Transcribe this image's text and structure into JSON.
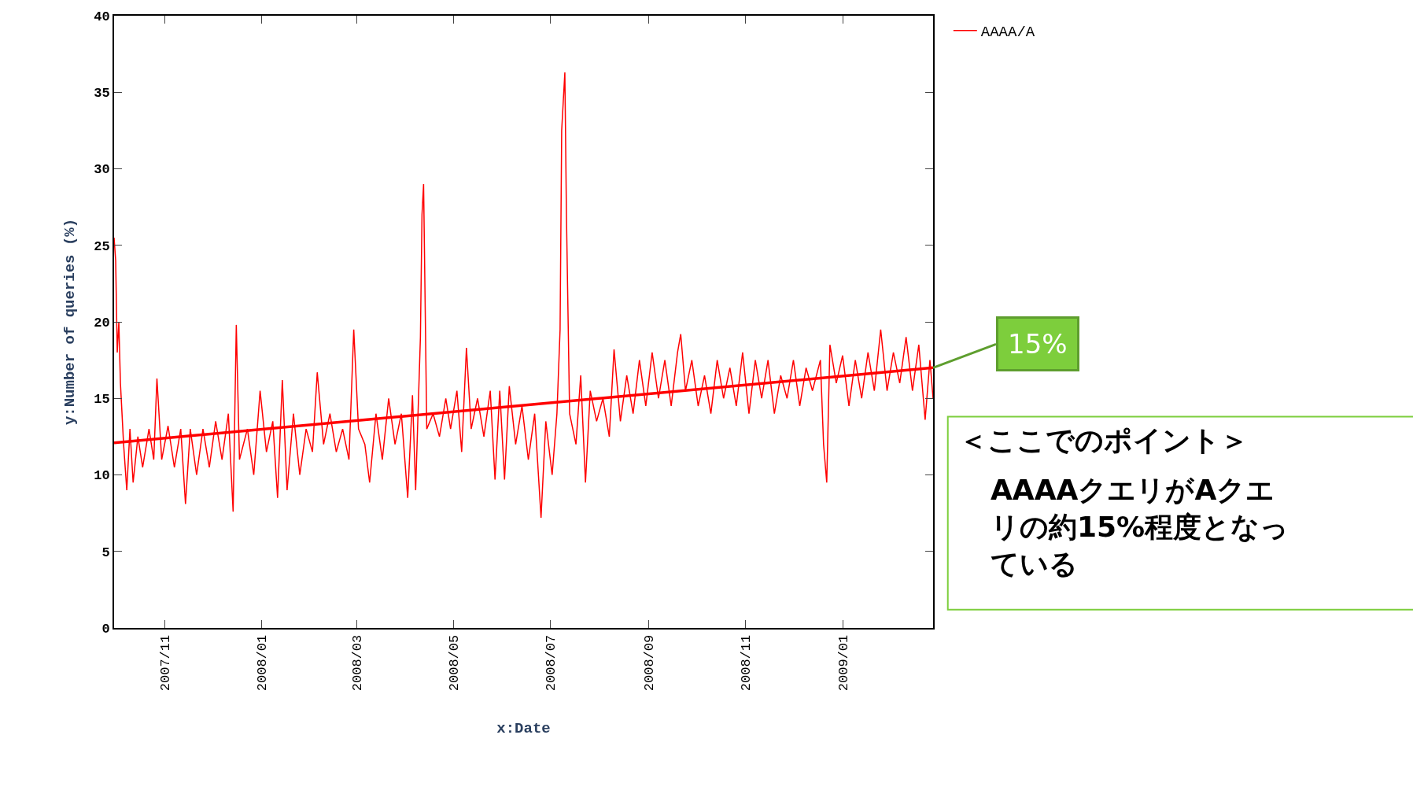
{
  "chart_data": {
    "type": "line",
    "xlabel": "x:Date",
    "ylabel": "y:Number of queries (%)",
    "xlim": [
      "2007-09-30",
      "2009-02-27"
    ],
    "ylim": [
      0,
      40
    ],
    "xticks": [
      {
        "value": "2007-11-01",
        "label": "2007/11"
      },
      {
        "value": "2008-01-01",
        "label": "2008/01"
      },
      {
        "value": "2008-03-01",
        "label": "2008/03"
      },
      {
        "value": "2008-05-01",
        "label": "2008/05"
      },
      {
        "value": "2008-07-01",
        "label": "2008/07"
      },
      {
        "value": "2008-09-01",
        "label": "2008/09"
      },
      {
        "value": "2008-11-01",
        "label": "2008/11"
      },
      {
        "value": "2009-01-01",
        "label": "2009/01"
      }
    ],
    "yticks": [
      0,
      5,
      10,
      15,
      20,
      25,
      30,
      35,
      40
    ],
    "legend": "top right",
    "series": [
      {
        "name": "AAAA/A",
        "color": "#ff0000",
        "x": [
          "2007-09-30",
          "2007-10-01",
          "2007-10-02",
          "2007-10-03",
          "2007-10-04",
          "2007-10-06",
          "2007-10-08",
          "2007-10-10",
          "2007-10-12",
          "2007-10-15",
          "2007-10-18",
          "2007-10-22",
          "2007-10-25",
          "2007-10-27",
          "2007-10-30",
          "2007-11-03",
          "2007-11-07",
          "2007-11-11",
          "2007-11-14",
          "2007-11-17",
          "2007-11-21",
          "2007-11-25",
          "2007-11-29",
          "2007-12-03",
          "2007-12-07",
          "2007-12-11",
          "2007-12-14",
          "2007-12-16",
          "2007-12-18",
          "2007-12-23",
          "2007-12-27",
          "2007-12-31",
          "2008-01-04",
          "2008-01-08",
          "2008-01-11",
          "2008-01-14",
          "2008-01-17",
          "2008-01-21",
          "2008-01-25",
          "2008-01-29",
          "2008-02-02",
          "2008-02-05",
          "2008-02-09",
          "2008-02-13",
          "2008-02-17",
          "2008-02-21",
          "2008-02-25",
          "2008-02-28",
          "2008-03-02",
          "2008-03-06",
          "2008-03-09",
          "2008-03-13",
          "2008-03-17",
          "2008-03-21",
          "2008-03-25",
          "2008-03-29",
          "2008-04-02",
          "2008-04-05",
          "2008-04-07",
          "2008-04-10",
          "2008-04-11",
          "2008-04-12",
          "2008-04-14",
          "2008-04-18",
          "2008-04-22",
          "2008-04-26",
          "2008-04-29",
          "2008-05-03",
          "2008-05-06",
          "2008-05-09",
          "2008-05-12",
          "2008-05-16",
          "2008-05-20",
          "2008-05-24",
          "2008-05-27",
          "2008-05-30",
          "2008-06-02",
          "2008-06-05",
          "2008-06-09",
          "2008-06-13",
          "2008-06-17",
          "2008-06-21",
          "2008-06-25",
          "2008-06-28",
          "2008-07-02",
          "2008-07-05",
          "2008-07-07",
          "2008-07-08",
          "2008-07-10",
          "2008-07-11",
          "2008-07-13",
          "2008-07-17",
          "2008-07-20",
          "2008-07-23",
          "2008-07-26",
          "2008-07-30",
          "2008-08-03",
          "2008-08-07",
          "2008-08-10",
          "2008-08-14",
          "2008-08-18",
          "2008-08-22",
          "2008-08-26",
          "2008-08-30",
          "2008-09-03",
          "2008-09-07",
          "2008-09-11",
          "2008-09-15",
          "2008-09-19",
          "2008-09-21",
          "2008-09-24",
          "2008-09-28",
          "2008-10-02",
          "2008-10-06",
          "2008-10-10",
          "2008-10-14",
          "2008-10-18",
          "2008-10-22",
          "2008-10-26",
          "2008-10-30",
          "2008-11-03",
          "2008-11-07",
          "2008-11-11",
          "2008-11-15",
          "2008-11-19",
          "2008-11-23",
          "2008-11-27",
          "2008-12-01",
          "2008-12-05",
          "2008-12-09",
          "2008-12-13",
          "2008-12-18",
          "2008-12-20",
          "2008-12-22",
          "2008-12-24",
          "2008-12-28",
          "2009-01-01",
          "2009-01-05",
          "2009-01-09",
          "2009-01-13",
          "2009-01-17",
          "2009-01-21",
          "2009-01-25",
          "2009-01-29",
          "2009-02-02",
          "2009-02-06",
          "2009-02-10",
          "2009-02-14",
          "2009-02-18",
          "2009-02-22",
          "2009-02-25",
          "2009-02-27"
        ],
        "values": [
          25.5,
          24,
          18,
          20,
          16,
          12,
          9,
          13,
          9.5,
          12.5,
          10.5,
          13,
          11,
          16.3,
          11,
          13.2,
          10.5,
          13,
          8.1,
          13,
          10,
          13,
          10.5,
          13.5,
          11,
          14,
          7.6,
          19.8,
          11,
          13,
          10,
          15.5,
          11.5,
          13.5,
          8.5,
          16.2,
          9,
          14,
          10,
          13,
          11.5,
          16.7,
          12,
          14,
          11.5,
          13,
          11,
          19.5,
          13,
          12,
          9.5,
          14,
          11,
          15,
          12,
          14,
          8.5,
          15.2,
          9,
          19,
          27,
          29,
          13,
          14,
          12.5,
          15,
          13,
          15.5,
          11.5,
          18.3,
          13,
          15,
          12.5,
          15.5,
          9.7,
          15.5,
          9.7,
          15.8,
          12,
          14.5,
          11,
          14,
          7.2,
          13.5,
          10,
          14,
          19.5,
          32.5,
          36.3,
          27,
          14,
          12,
          16.5,
          9.5,
          15.5,
          13.5,
          15,
          12.5,
          18.2,
          13.5,
          16.5,
          14,
          17.5,
          14.5,
          18,
          15,
          17.5,
          14.5,
          18,
          19.2,
          15.5,
          17.5,
          14.5,
          16.5,
          14,
          17.5,
          15,
          17,
          14.5,
          18,
          14,
          17.5,
          15,
          17.5,
          14,
          16.5,
          15,
          17.5,
          14.5,
          17,
          15.5,
          17.5,
          12,
          9.5,
          18.5,
          16,
          17.8,
          14.5,
          17.5,
          15,
          18,
          15.5,
          19.5,
          15.5,
          18,
          16,
          19,
          15.5,
          18.5,
          13.6,
          17.5,
          15
        ]
      },
      {
        "type": "line",
        "color": "#ff0000",
        "x": [
          "2007-09-30",
          "2009-02-27"
        ],
        "values": [
          12.1,
          17.0
        ]
      }
    ],
    "annotations": [
      {
        "text": "15%",
        "x": "2009-02-27",
        "y": 17.0
      },
      "＜ここでのポイント＞",
      "AAAAクエリがAクエリの約15%程度となっている"
    ]
  }
}
